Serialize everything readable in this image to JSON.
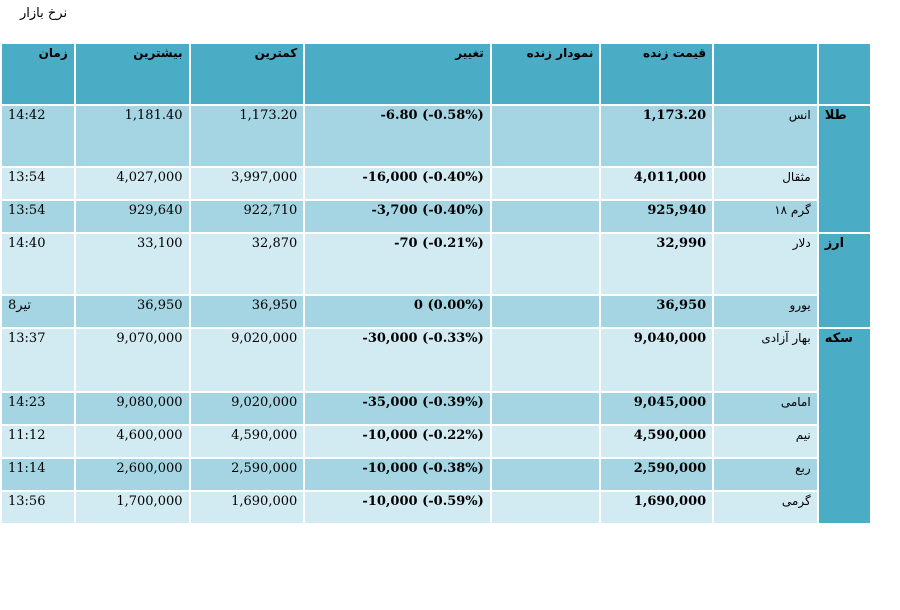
{
  "page_title": "نرخ بازار",
  "headers": {
    "time": "زمان",
    "high": "بیشترین",
    "low": "کمترین",
    "change": "تغییر",
    "live_chart": "نمودار زنده",
    "live_price": "قیمت زنده",
    "item": "",
    "category": ""
  },
  "categories": {
    "gold": "طلا",
    "currency": "ارز",
    "coin": "سکه"
  },
  "rows": [
    {
      "time": "14:42",
      "high": "1,181.40",
      "low": "1,173.20",
      "change": "-6.80 (-0.58%)",
      "chart": "",
      "price": "1,173.20",
      "item": "انس"
    },
    {
      "time": "13:54",
      "high": "4,027,000",
      "low": "3,997,000",
      "change": "-16,000 (-0.40%)",
      "chart": "",
      "price": "4,011,000",
      "item": "مثقال"
    },
    {
      "time": "13:54",
      "high": "929,640",
      "low": "922,710",
      "change": "-3,700 (-0.40%)",
      "chart": "",
      "price": "925,940",
      "item": "گرم ۱۸"
    },
    {
      "time": "14:40",
      "high": "33,100",
      "low": "32,870",
      "change": "-70 (-0.21%)",
      "chart": "",
      "price": "32,990",
      "item": "دلار"
    },
    {
      "time": "8تیر",
      "high": "36,950",
      "low": "36,950",
      "change": "0 (0.00%)",
      "chart": "",
      "price": "36,950",
      "item": "یورو"
    },
    {
      "time": "13:37",
      "high": "9,070,000",
      "low": "9,020,000",
      "change": "-30,000 (-0.33%)",
      "chart": "",
      "price": "9,040,000",
      "item": "بهار آزادی"
    },
    {
      "time": "14:23",
      "high": "9,080,000",
      "low": "9,020,000",
      "change": "-35,000 (-0.39%)",
      "chart": "",
      "price": "9,045,000",
      "item": "امامی"
    },
    {
      "time": "11:12",
      "high": "4,600,000",
      "low": "4,590,000",
      "change": "-10,000 (-0.22%)",
      "chart": "",
      "price": "4,590,000",
      "item": "نیم"
    },
    {
      "time": "11:14",
      "high": "2,600,000",
      "low": "2,590,000",
      "change": "-10,000 (-0.38%)",
      "chart": "",
      "price": "2,590,000",
      "item": "ربع"
    },
    {
      "time": "13:56",
      "high": "1,700,000",
      "low": "1,690,000",
      "change": "-10,000 (-0.59%)",
      "chart": "",
      "price": "1,690,000",
      "item": "گرمی"
    }
  ],
  "colors": {
    "header": "#4bacc6",
    "row_dark": "#a5d5e2",
    "row_light": "#d2eaf1"
  }
}
